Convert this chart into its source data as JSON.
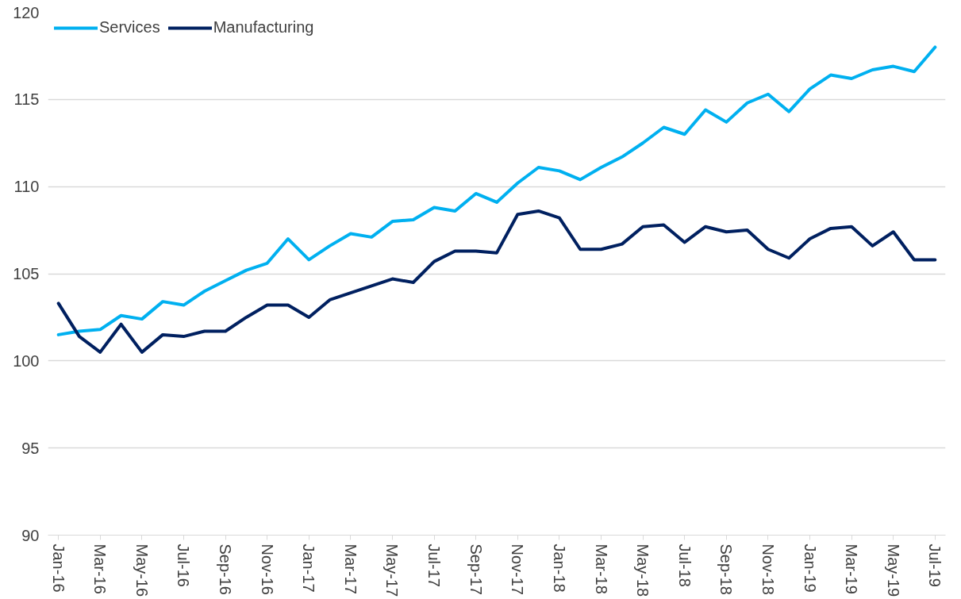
{
  "chart_data": {
    "type": "line",
    "categories": [
      "Jan-16",
      null,
      "Mar-16",
      null,
      "May-16",
      null,
      "Jul-16",
      null,
      "Sep-16",
      null,
      "Nov-16",
      null,
      "Jan-17",
      null,
      "Mar-17",
      null,
      "May-17",
      null,
      "Jul-17",
      null,
      "Sep-17",
      null,
      "Nov-17",
      null,
      "Jan-18",
      null,
      "Mar-18",
      null,
      "May-18",
      null,
      "Jul-18",
      null,
      "Sep-18",
      null,
      "Nov-18",
      null,
      "Jan-19",
      null,
      "Mar-19",
      null,
      "May-19",
      null,
      "Jul-19"
    ],
    "series": [
      {
        "name": "Services",
        "color": "#00b0f0",
        "values": [
          101.5,
          101.7,
          101.8,
          102.6,
          102.4,
          103.4,
          103.2,
          104.0,
          104.6,
          105.2,
          105.6,
          107.0,
          105.8,
          106.6,
          107.3,
          107.1,
          108.0,
          108.1,
          108.8,
          108.6,
          109.6,
          109.1,
          110.2,
          111.1,
          110.9,
          110.4,
          111.1,
          111.7,
          112.5,
          113.4,
          113.0,
          114.4,
          113.7,
          114.8,
          115.3,
          114.3,
          115.6,
          116.4,
          116.2,
          116.7,
          116.9,
          116.6,
          118.0
        ]
      },
      {
        "name": "Manufacturing",
        "color": "#002060",
        "values": [
          103.3,
          101.4,
          100.5,
          102.1,
          100.5,
          101.5,
          101.4,
          101.7,
          101.7,
          102.5,
          103.2,
          103.2,
          102.5,
          103.5,
          103.9,
          104.3,
          104.7,
          104.5,
          105.7,
          106.3,
          106.3,
          106.2,
          108.4,
          108.6,
          108.2,
          106.4,
          106.4,
          106.7,
          107.7,
          107.8,
          106.8,
          107.7,
          107.4,
          107.5,
          106.4,
          105.9,
          107.0,
          107.6,
          107.7,
          106.6,
          107.4,
          105.8,
          105.8
        ]
      }
    ],
    "ylim": [
      90,
      120
    ],
    "yticks": [
      90,
      95,
      100,
      105,
      110,
      115,
      120
    ],
    "grid": "y",
    "legend": "top left",
    "marker": "none",
    "line_style": "solid"
  }
}
